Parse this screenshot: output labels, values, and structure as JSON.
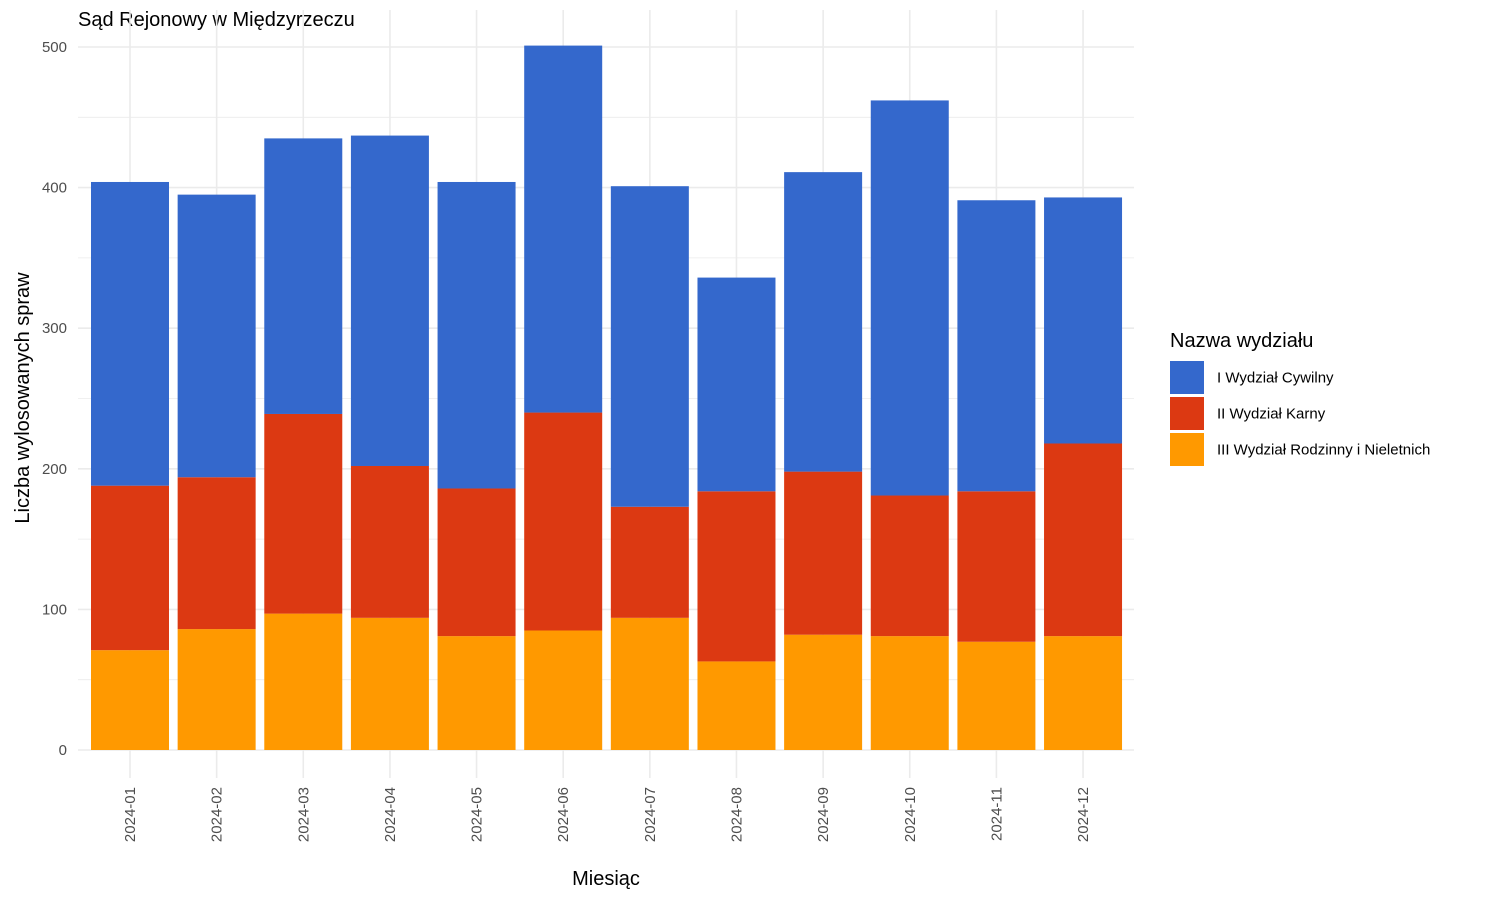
{
  "chart_data": {
    "type": "bar",
    "stacked": true,
    "title": "Sąd Rejonowy w Międzyrzeczu",
    "xlabel": "Miesiąc",
    "ylabel": "Liczba wylosowanych spraw",
    "ylim": [
      0,
      500
    ],
    "yticks": [
      0,
      100,
      200,
      300,
      400,
      500
    ],
    "grid": true,
    "legend_title": "Nazwa wydziału",
    "legend_position": "right",
    "categories": [
      "2024-01",
      "2024-02",
      "2024-03",
      "2024-04",
      "2024-05",
      "2024-06",
      "2024-07",
      "2024-08",
      "2024-09",
      "2024-10",
      "2024-11",
      "2024-12"
    ],
    "series": [
      {
        "name": "I Wydział Cywilny",
        "color": "#3468CC",
        "values": [
          216,
          201,
          196,
          235,
          218,
          261,
          228,
          152,
          213,
          281,
          207,
          175
        ]
      },
      {
        "name": "II Wydział Karny",
        "color": "#DC3912",
        "values": [
          117,
          108,
          142,
          108,
          105,
          155,
          79,
          121,
          116,
          100,
          107,
          137
        ]
      },
      {
        "name": "III Wydział Rodzinny i Nieletnich",
        "color": "#FF9900",
        "values": [
          71,
          86,
          97,
          94,
          81,
          85,
          94,
          63,
          82,
          81,
          77,
          81
        ]
      }
    ]
  }
}
